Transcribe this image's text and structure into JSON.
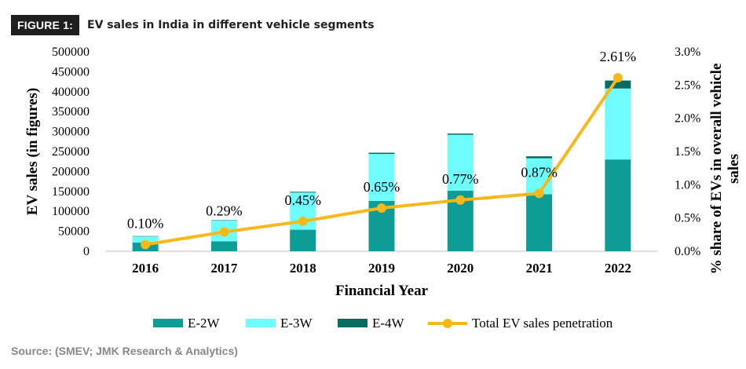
{
  "header": {
    "badge": "FIGURE 1:",
    "title": "EV sales in India in different vehicle segments"
  },
  "source": "Source: (SMEV; JMK Research & Analytics)",
  "chart_data": {
    "type": "bar",
    "stacked": true,
    "categories": [
      "2016",
      "2017",
      "2018",
      "2019",
      "2020",
      "2021",
      "2022"
    ],
    "series": [
      {
        "name": "E-2W",
        "color": "#0e9c96",
        "values": [
          22000,
          25000,
          54000,
          126000,
          152000,
          143000,
          230000
        ]
      },
      {
        "name": "E-3W",
        "color": "#6ffcfc",
        "values": [
          15000,
          52000,
          93000,
          118000,
          140000,
          90000,
          178000
        ]
      },
      {
        "name": "E-4W",
        "color": "#0a6b62",
        "values": [
          1000,
          1000,
          2000,
          3000,
          3000,
          5000,
          20000
        ]
      }
    ],
    "line_series": {
      "name": "Total EV sales penetration",
      "color": "#f7b81c",
      "axis": "right",
      "values": [
        0.1,
        0.29,
        0.45,
        0.65,
        0.77,
        0.87,
        2.61
      ],
      "labels": [
        "0.10%",
        "0.29%",
        "0.45%",
        "0.65%",
        "0.77%",
        "0.87%",
        "2.61%"
      ]
    },
    "xlabel": "Financial Year",
    "ylabel": "EV sales (in figures)",
    "ylabel_right": [
      "% share of EVs in overall vehicle",
      "sales"
    ],
    "ylim": [
      0,
      500000
    ],
    "yticks": [
      "500000",
      "450000",
      "400000",
      "350000",
      "300000",
      "250000",
      "200000",
      "150000",
      "100000",
      "50000",
      "0"
    ],
    "ylim_right": [
      0,
      3.0
    ],
    "yticks_right": [
      "3.0%",
      "2.5%",
      "2.0%",
      "1.5%",
      "1.0%",
      "0.5%",
      "0.0%"
    ],
    "legend_position": "bottom"
  }
}
